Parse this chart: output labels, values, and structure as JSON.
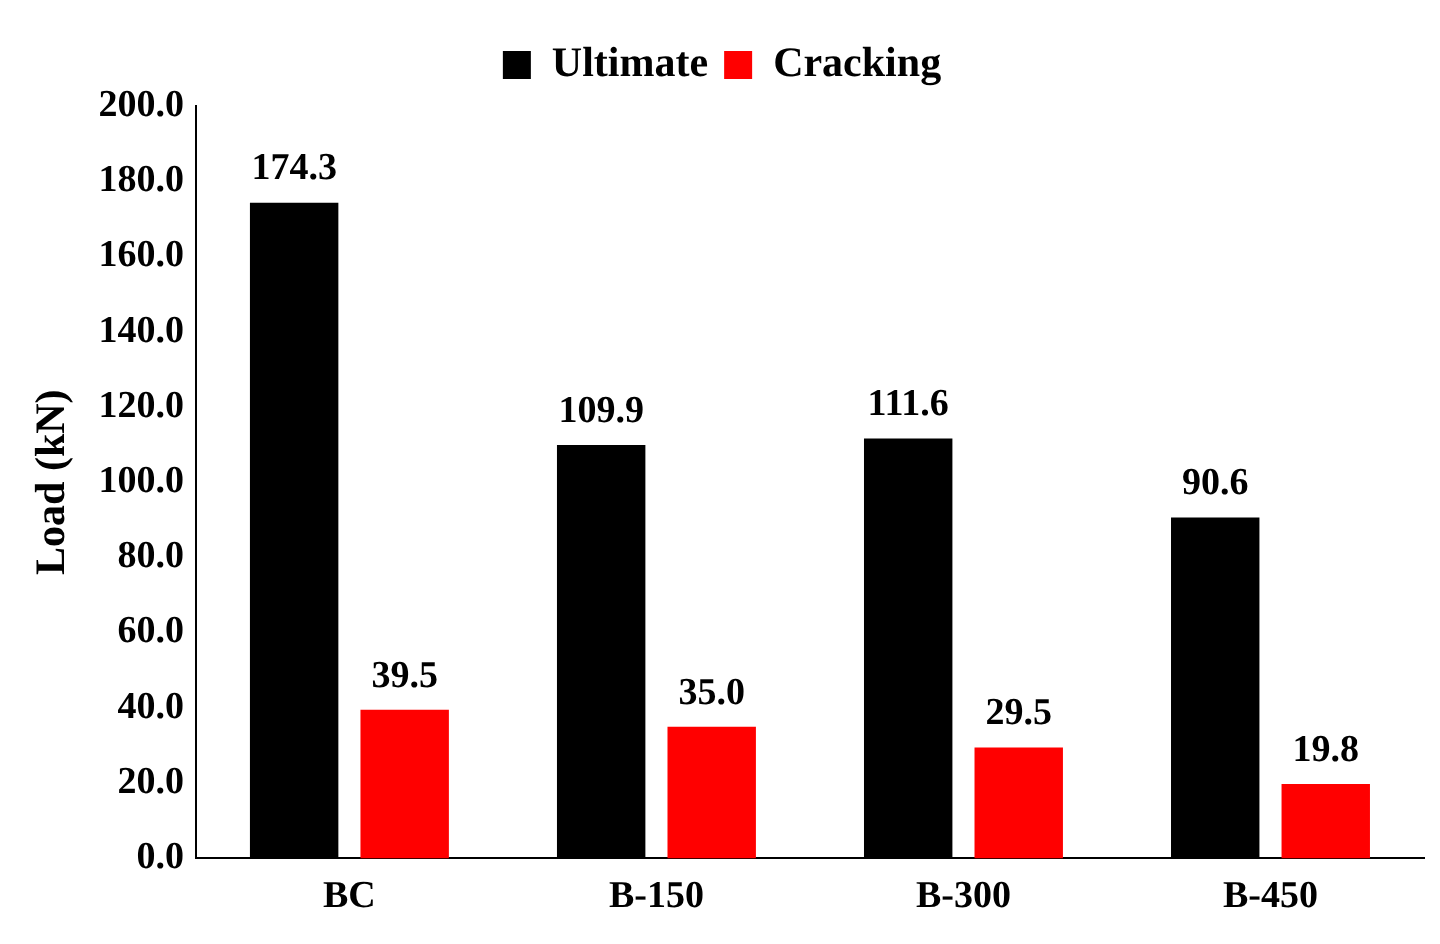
{
  "chart_data": {
    "type": "bar",
    "ylabel": "Load (kN)",
    "categories": [
      "BC",
      "B-150",
      "B-300",
      "B-450"
    ],
    "series": [
      {
        "name": "Ultimate",
        "color": "#000000",
        "values": [
          174.3,
          109.9,
          111.6,
          90.6
        ],
        "value_labels": [
          "174.3",
          "109.9",
          "111.6",
          "90.6"
        ]
      },
      {
        "name": "Cracking",
        "color": "#ff0000",
        "values": [
          39.5,
          35.0,
          29.5,
          19.8
        ],
        "value_labels": [
          "39.5",
          "35.0",
          "29.5",
          "19.8"
        ]
      }
    ],
    "ylim": [
      0,
      200
    ],
    "yticks": [
      {
        "value": 0,
        "label": "0.0"
      },
      {
        "value": 20,
        "label": "20.0"
      },
      {
        "value": 40,
        "label": "40.0"
      },
      {
        "value": 60,
        "label": "60.0"
      },
      {
        "value": 80,
        "label": "80.0"
      },
      {
        "value": 100,
        "label": "100.0"
      },
      {
        "value": 120,
        "label": "120.0"
      },
      {
        "value": 140,
        "label": "140.0"
      },
      {
        "value": 160,
        "label": "160.0"
      },
      {
        "value": 180,
        "label": "180.0"
      },
      {
        "value": 200,
        "label": "200.0"
      }
    ],
    "grid": false,
    "legend": "top"
  }
}
